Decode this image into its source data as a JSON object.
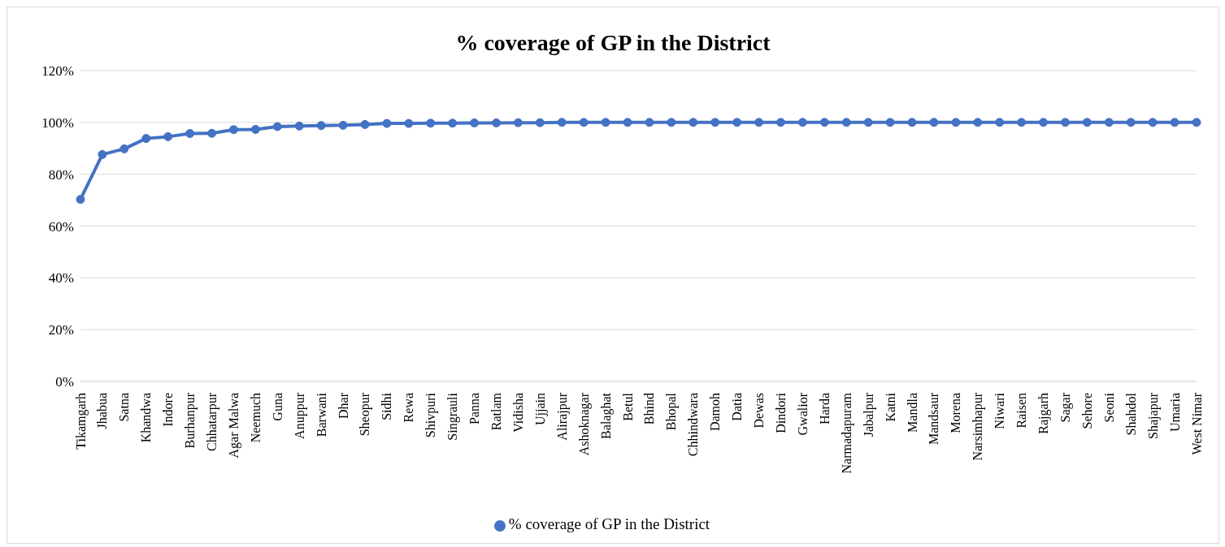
{
  "chart_data": {
    "type": "line",
    "title": "% coverage of GP in the District",
    "categories": [
      "Tikamgarh",
      "Jhabua",
      "Satna",
      "Khandwa",
      "Indore",
      "Burhanpur",
      "Chhatarpur",
      "Agar Malwa",
      "Neemuch",
      "Guna",
      "Anuppur",
      "Barwani",
      "Dhar",
      "Sheopur",
      "Sidhi",
      "Rewa",
      "Shivpuri",
      "Singrauli",
      "Panna",
      "Ratlam",
      "Vidisha",
      "Ujjain",
      "Alirajpur",
      "Ashoknagar",
      "Balaghat",
      "Betul",
      "Bhind",
      "Bhopal",
      "Chhindwara",
      "Damoh",
      "Datia",
      "Dewas",
      "Dindori",
      "Gwalior",
      "Harda",
      "Narmadapuram",
      "Jabalpur",
      "Katni",
      "Mandla",
      "Mandsaur",
      "Morena",
      "Narsimhapur",
      "Niwari",
      "Raisen",
      "Rajgarh",
      "Sagar",
      "Sehore",
      "Seoni",
      "Shahdol",
      "Shajapur",
      "Umaria",
      "West Nimar"
    ],
    "series": [
      {
        "name": "% coverage of GP in the District",
        "color": "#4472c4",
        "values": [
          70.3,
          87.6,
          89.8,
          93.8,
          94.5,
          95.7,
          95.8,
          97.2,
          97.3,
          98.4,
          98.6,
          98.8,
          98.9,
          99.2,
          99.6,
          99.6,
          99.7,
          99.7,
          99.8,
          99.8,
          99.9,
          99.9,
          100,
          100,
          100,
          100,
          100,
          100,
          100,
          100,
          100,
          100,
          100,
          100,
          100,
          100,
          100,
          100,
          100,
          100,
          100,
          100,
          100,
          100,
          100,
          100,
          100,
          100,
          100,
          100,
          100,
          100
        ]
      }
    ],
    "ylim": [
      0,
      120
    ],
    "yticks": [
      {
        "value": 0,
        "label": "0%"
      },
      {
        "value": 20,
        "label": "20%"
      },
      {
        "value": 40,
        "label": "40%"
      },
      {
        "value": 60,
        "label": "60%"
      },
      {
        "value": 80,
        "label": "80%"
      },
      {
        "value": 100,
        "label": "100%"
      },
      {
        "value": 120,
        "label": "120%"
      }
    ],
    "grid": "y",
    "legend": "bottom",
    "marker": "circle",
    "line_style": "solid"
  }
}
